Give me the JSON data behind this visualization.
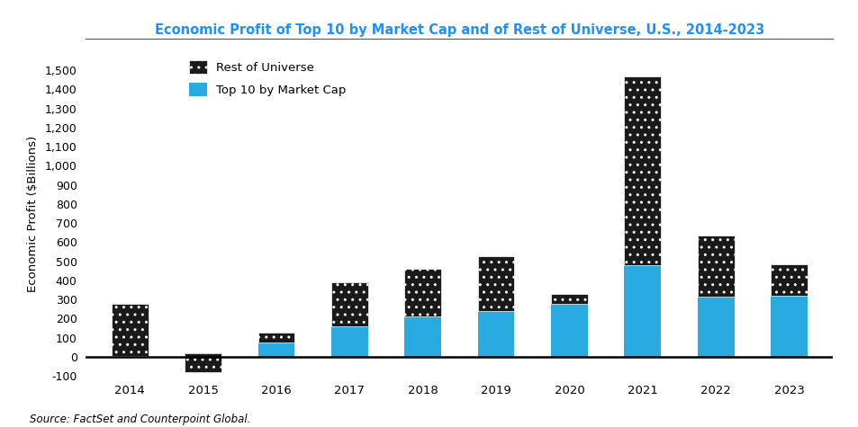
{
  "years": [
    2014,
    2015,
    2016,
    2017,
    2018,
    2019,
    2020,
    2021,
    2022,
    2023
  ],
  "top10": [
    5,
    20,
    75,
    160,
    210,
    240,
    275,
    480,
    315,
    320
  ],
  "total": [
    275,
    -80,
    125,
    390,
    460,
    525,
    330,
    1470,
    635,
    485
  ],
  "title": "Economic Profit of Top 10 by Market Cap and of Rest of Universe, U.S., 2014-2023",
  "ylabel": "Economic Profit ($Billions)",
  "source": "Source: FactSet and Counterpoint Global.",
  "ylim": [
    -100,
    1600
  ],
  "yticks": [
    -100,
    0,
    100,
    200,
    300,
    400,
    500,
    600,
    700,
    800,
    900,
    1000,
    1100,
    1200,
    1300,
    1400,
    1500
  ],
  "color_top10": "#29ABE2",
  "color_rest_face": "#1a1a1a",
  "title_color": "#1E90FF",
  "background_color": "#FFFFFF",
  "bar_width": 0.5
}
